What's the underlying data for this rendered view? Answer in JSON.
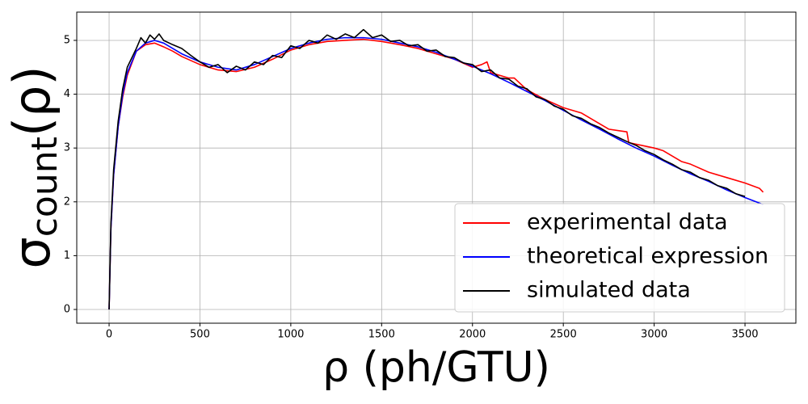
{
  "chart_data": {
    "type": "line",
    "xlabel": "ρ (ph/GTU)",
    "ylabel": {
      "symbol": "σ",
      "subscript": "count",
      "argument": "(ρ)"
    },
    "xlim": [
      -178,
      3780
    ],
    "ylim": [
      -0.255,
      5.525
    ],
    "xticks": [
      0,
      500,
      1000,
      1500,
      2000,
      2500,
      3000,
      3500
    ],
    "yticks": [
      0,
      1,
      2,
      3,
      4,
      5
    ],
    "grid": true,
    "legend": "lower right",
    "series": [
      {
        "name": "experimental data",
        "color": "#ff0000",
        "x": [
          0,
          10,
          25,
          50,
          75,
          100,
          150,
          200,
          250,
          300,
          350,
          400,
          500,
          600,
          700,
          800,
          900,
          1000,
          1100,
          1200,
          1300,
          1400,
          1500,
          1600,
          1700,
          1800,
          1900,
          2000,
          2050,
          2080,
          2100,
          2200,
          2230,
          2300,
          2400,
          2500,
          2600,
          2700,
          2750,
          2850,
          2860,
          3000,
          3050,
          3100,
          3150,
          3200,
          3300,
          3400,
          3500,
          3580,
          3600
        ],
        "values": [
          0,
          1.5,
          2.5,
          3.4,
          3.95,
          4.35,
          4.8,
          4.92,
          4.95,
          4.88,
          4.8,
          4.7,
          4.55,
          4.45,
          4.42,
          4.5,
          4.65,
          4.82,
          4.92,
          4.98,
          5.0,
          5.02,
          4.98,
          4.92,
          4.85,
          4.75,
          4.65,
          4.5,
          4.55,
          4.6,
          4.4,
          4.3,
          4.3,
          4.08,
          3.9,
          3.75,
          3.65,
          3.45,
          3.35,
          3.3,
          3.1,
          3.0,
          2.95,
          2.85,
          2.75,
          2.7,
          2.55,
          2.45,
          2.35,
          2.25,
          2.18
        ]
      },
      {
        "name": "theoretical expression",
        "color": "#0000ff",
        "x": [
          0,
          10,
          25,
          50,
          75,
          100,
          150,
          200,
          250,
          300,
          400,
          500,
          600,
          700,
          800,
          900,
          1000,
          1100,
          1200,
          1300,
          1400,
          1500,
          1600,
          1700,
          1800,
          1900,
          2000,
          2100,
          2200,
          2300,
          2400,
          2500,
          2600,
          2700,
          2800,
          2900,
          3000,
          3100,
          3200,
          3300,
          3400,
          3500,
          3600
        ],
        "values": [
          0,
          1.5,
          2.5,
          3.4,
          4.0,
          4.4,
          4.8,
          4.95,
          5.0,
          4.95,
          4.75,
          4.6,
          4.5,
          4.45,
          4.55,
          4.7,
          4.85,
          4.95,
          5.02,
          5.05,
          5.05,
          5.02,
          4.95,
          4.88,
          4.78,
          4.65,
          4.52,
          4.38,
          4.22,
          4.05,
          3.88,
          3.7,
          3.52,
          3.35,
          3.17,
          3.0,
          2.85,
          2.68,
          2.52,
          2.38,
          2.22,
          2.08,
          1.95
        ]
      },
      {
        "name": "simulated data",
        "color": "#000000",
        "x": [
          0,
          10,
          25,
          50,
          75,
          100,
          150,
          175,
          200,
          225,
          250,
          275,
          300,
          350,
          400,
          450,
          500,
          550,
          600,
          650,
          700,
          750,
          800,
          850,
          900,
          950,
          1000,
          1050,
          1100,
          1150,
          1200,
          1250,
          1300,
          1350,
          1400,
          1450,
          1500,
          1550,
          1600,
          1650,
          1700,
          1750,
          1800,
          1850,
          1900,
          1950,
          2000,
          2050,
          2100,
          2150,
          2200,
          2250,
          2300,
          2350,
          2400,
          2450,
          2500,
          2550,
          2600,
          2650,
          2700,
          2750,
          2800,
          2850,
          2900,
          2950,
          3000,
          3050,
          3100,
          3150,
          3200,
          3250,
          3300,
          3350,
          3400,
          3450,
          3500
        ],
        "values": [
          0,
          1.6,
          2.6,
          3.5,
          4.1,
          4.5,
          4.85,
          5.05,
          4.95,
          5.1,
          5.02,
          5.12,
          5.0,
          4.92,
          4.85,
          4.72,
          4.6,
          4.5,
          4.55,
          4.4,
          4.52,
          4.45,
          4.6,
          4.55,
          4.72,
          4.68,
          4.9,
          4.85,
          5.0,
          4.95,
          5.1,
          5.02,
          5.12,
          5.05,
          5.2,
          5.05,
          5.1,
          4.98,
          5.0,
          4.9,
          4.92,
          4.8,
          4.82,
          4.7,
          4.68,
          4.58,
          4.55,
          4.42,
          4.45,
          4.3,
          4.28,
          4.15,
          4.1,
          3.95,
          3.9,
          3.78,
          3.72,
          3.6,
          3.55,
          3.45,
          3.38,
          3.28,
          3.2,
          3.12,
          3.05,
          2.95,
          2.88,
          2.78,
          2.7,
          2.6,
          2.55,
          2.45,
          2.4,
          2.3,
          2.25,
          2.15,
          2.1
        ]
      }
    ]
  }
}
